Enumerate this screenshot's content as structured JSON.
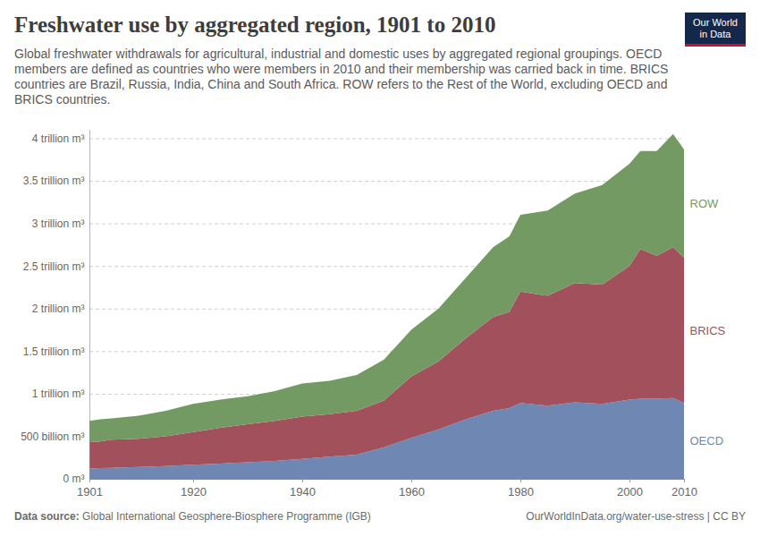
{
  "chart_data": {
    "type": "area",
    "stacked": true,
    "title": "Freshwater use by aggregated region, 1901 to 2010",
    "subtitle": "Global freshwater withdrawals for agricultural, industrial and domestic uses by aggregated regional groupings. OECD members are defined as countries who were members in 2010 and their membership was carried back in time. BRICS countries are Brazil, Russia, India, China and South Africa. ROW refers to the Rest of the World, excluding OECD and BRICS countries.",
    "logo": [
      "Our World",
      "in Data"
    ],
    "source_label": "Data source:",
    "source": "Global International Geosphere-Biosphere Programme (IGB)",
    "url": "OurWorldInData.org/water-use-stress | CC BY",
    "x": [
      1901,
      1903,
      1905,
      1910,
      1915,
      1920,
      1925,
      1930,
      1935,
      1940,
      1945,
      1950,
      1955,
      1960,
      1965,
      1970,
      1975,
      1978,
      1980,
      1985,
      1990,
      1995,
      2000,
      2002,
      2005,
      2008,
      2010
    ],
    "series": [
      {
        "name": "OECD",
        "color": "#6f88b3",
        "values": [
          120000000000,
          125000000000,
          130000000000,
          140000000000,
          150000000000,
          165000000000,
          180000000000,
          195000000000,
          210000000000,
          235000000000,
          260000000000,
          285000000000,
          370000000000,
          480000000000,
          580000000000,
          700000000000,
          800000000000,
          830000000000,
          890000000000,
          860000000000,
          900000000000,
          880000000000,
          930000000000,
          940000000000,
          940000000000,
          950000000000,
          890000000000
        ]
      },
      {
        "name": "BRICS",
        "color": "#a1505c",
        "values": [
          310000000000,
          315000000000,
          330000000000,
          330000000000,
          350000000000,
          385000000000,
          420000000000,
          445000000000,
          470000000000,
          495000000000,
          500000000000,
          515000000000,
          550000000000,
          720000000000,
          800000000000,
          950000000000,
          1100000000000,
          1130000000000,
          1310000000000,
          1290000000000,
          1400000000000,
          1400000000000,
          1570000000000,
          1760000000000,
          1680000000000,
          1770000000000,
          1710000000000
        ]
      },
      {
        "name": "ROW",
        "color": "#739a62",
        "values": [
          250000000000,
          260000000000,
          250000000000,
          270000000000,
          300000000000,
          330000000000,
          330000000000,
          330000000000,
          350000000000,
          390000000000,
          390000000000,
          420000000000,
          480000000000,
          550000000000,
          620000000000,
          710000000000,
          820000000000,
          890000000000,
          900000000000,
          1000000000000,
          1050000000000,
          1170000000000,
          1200000000000,
          1150000000000,
          1230000000000,
          1330000000000,
          1270000000000
        ]
      }
    ],
    "xlim": [
      1901,
      2010
    ],
    "xticks": [
      1901,
      1920,
      1940,
      1960,
      1980,
      2000,
      2010
    ],
    "ylim": [
      0,
      4100000000000
    ],
    "yticks": [
      {
        "value": 0,
        "label": "0 m³"
      },
      {
        "value": 500000000000,
        "label": "500 billion m³"
      },
      {
        "value": 1000000000000,
        "label": "1 trillion m³"
      },
      {
        "value": 1500000000000,
        "label": "1.5 trillion m³"
      },
      {
        "value": 2000000000000,
        "label": "2 trillion m³"
      },
      {
        "value": 2500000000000,
        "label": "2.5 trillion m³"
      },
      {
        "value": 3000000000000,
        "label": "3 trillion m³"
      },
      {
        "value": 3500000000000,
        "label": "3.5 trillion m³"
      },
      {
        "value": 4000000000000,
        "label": "4 trillion m³"
      }
    ],
    "grid": true
  }
}
